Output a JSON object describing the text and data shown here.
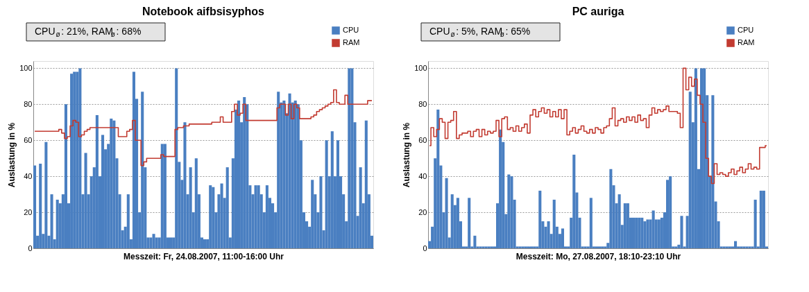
{
  "chart_data": [
    {
      "type": "bar",
      "title": "Notebook aifbsisyphos",
      "xlabel": "Messzeit: Fr, 24.08.2007,  11:00-16:00 Uhr",
      "ylabel": "Auslastung in %",
      "annotations": [
        "CPU$_{ø}$: 21%, RAM$_{ø}$: 68%"
      ],
      "categories": [
        null,
        null,
        null,
        null,
        null,
        null,
        null,
        null,
        null,
        null,
        null,
        null,
        null,
        null,
        null,
        null,
        null,
        null,
        null,
        null,
        null,
        null,
        null,
        null,
        null,
        null,
        null,
        null,
        null,
        null,
        null,
        null,
        null,
        null,
        null,
        null,
        null,
        null,
        null,
        null,
        null,
        null,
        null,
        null,
        null,
        null,
        null,
        null,
        null,
        null,
        null,
        null,
        null,
        null,
        null,
        null,
        null,
        null,
        null,
        null,
        null,
        null,
        null,
        null,
        null,
        null,
        null,
        null,
        null,
        null,
        null,
        null,
        null,
        null,
        null,
        null,
        null,
        null,
        null,
        null,
        null,
        null,
        null,
        null,
        null,
        null,
        null,
        null,
        null,
        null,
        null,
        null,
        null,
        null,
        null,
        null,
        null,
        null,
        null,
        null,
        null,
        null,
        null,
        null,
        null,
        null,
        null,
        null,
        null,
        null,
        null,
        null,
        null,
        null,
        null,
        null,
        null,
        null,
        null,
        null
      ],
      "series": [
        {
          "name": "CPU",
          "color": "#4a7fc1",
          "values": [
            46,
            7,
            47,
            8,
            59,
            7,
            30,
            5,
            27,
            25,
            30,
            80,
            25,
            97,
            98,
            98,
            100,
            30,
            53,
            30,
            40,
            45,
            74,
            40,
            63,
            55,
            58,
            72,
            71,
            50,
            30,
            10,
            12,
            30,
            5,
            98,
            83,
            20,
            87,
            45,
            6,
            6,
            8,
            6,
            6,
            58,
            58,
            6,
            6,
            6,
            100,
            48,
            38,
            70,
            30,
            45,
            20,
            50,
            30,
            6,
            5,
            5,
            35,
            34,
            20,
            30,
            36,
            28,
            45,
            6,
            50,
            77,
            82,
            70,
            84,
            80,
            35,
            30,
            35,
            35,
            30,
            20,
            35,
            28,
            25,
            20,
            87,
            81,
            82,
            75,
            86,
            81,
            82,
            80,
            60,
            20,
            15,
            12,
            38,
            30,
            20,
            40,
            10,
            60,
            40,
            65,
            40,
            60,
            40,
            30,
            15,
            100,
            100,
            70,
            18,
            45,
            25,
            71,
            30,
            7
          ]
        },
        {
          "name": "RAM",
          "type": "step",
          "color": "#c23b31",
          "values": [
            65,
            65,
            65,
            65,
            65,
            65,
            65,
            65,
            65,
            66,
            64,
            61,
            62,
            68,
            71,
            70,
            62,
            63,
            65,
            66,
            67,
            67,
            67,
            67,
            67,
            67,
            67,
            67,
            67,
            67,
            62,
            62,
            62,
            65,
            66,
            71,
            60,
            60,
            46,
            48,
            50,
            50,
            50,
            50,
            50,
            52,
            51,
            51,
            51,
            51,
            66,
            67,
            67,
            68,
            68,
            69,
            69,
            69,
            69,
            69,
            69,
            69,
            69,
            70,
            70,
            70,
            73,
            70,
            70,
            70,
            76,
            80,
            74,
            75,
            80,
            71,
            71,
            71,
            71,
            71,
            71,
            71,
            71,
            71,
            71,
            71,
            78,
            80,
            80,
            74,
            80,
            72,
            80,
            78,
            72,
            72,
            72,
            72,
            73,
            74,
            76,
            77,
            78,
            79,
            80,
            81,
            88,
            81,
            80,
            80,
            85,
            80,
            80,
            80,
            80,
            80,
            80,
            80,
            82,
            82
          ]
        }
      ],
      "ylim": [
        0,
        104
      ],
      "yticks": [
        0,
        20,
        40,
        60,
        80,
        100
      ],
      "grid": "y",
      "legend": "top right",
      "tick_labels": "y"
    },
    {
      "type": "bar",
      "title": "PC auriga",
      "xlabel": "Messzeit: Mo, 27.08.2007,  18:10-23:10 Uhr",
      "ylabel": "Auslastung in %",
      "annotations": [
        "CPU$_{ø}$: 5%, RAM$_{ø}$: 65%"
      ],
      "categories": [
        null,
        null,
        null,
        null,
        null,
        null,
        null,
        null,
        null,
        null,
        null,
        null,
        null,
        null,
        null,
        null,
        null,
        null,
        null,
        null,
        null,
        null,
        null,
        null,
        null,
        null,
        null,
        null,
        null,
        null,
        null,
        null,
        null,
        null,
        null,
        null,
        null,
        null,
        null,
        null,
        null,
        null,
        null,
        null,
        null,
        null,
        null,
        null,
        null,
        null,
        null,
        null,
        null,
        null,
        null,
        null,
        null,
        null,
        null,
        null,
        null,
        null,
        null,
        null,
        null,
        null,
        null,
        null,
        null,
        null,
        null,
        null,
        null,
        null,
        null,
        null,
        null,
        null,
        null,
        null,
        null,
        null,
        null,
        null,
        null,
        null,
        null,
        null,
        null,
        null,
        null,
        null,
        null,
        null,
        null,
        null,
        null,
        null,
        null,
        null,
        null,
        null,
        null,
        null,
        null,
        null,
        null,
        null,
        null,
        null,
        null,
        null,
        null,
        null,
        null,
        null,
        null,
        null,
        null,
        null
      ],
      "series": [
        {
          "name": "CPU",
          "color": "#4a7fc1",
          "values": [
            4,
            12,
            50,
            77,
            46,
            20,
            39,
            6,
            30,
            24,
            28,
            15,
            1,
            1,
            28,
            1,
            7,
            1,
            1,
            1,
            1,
            1,
            1,
            1,
            25,
            66,
            59,
            19,
            41,
            40,
            27,
            1,
            1,
            1,
            1,
            1,
            1,
            1,
            1,
            32,
            15,
            12,
            15,
            8,
            27,
            12,
            8,
            11,
            1,
            1,
            17,
            52,
            31,
            17,
            1,
            1,
            1,
            28,
            1,
            1,
            1,
            1,
            1,
            3,
            44,
            35,
            25,
            30,
            13,
            25,
            25,
            17,
            17,
            17,
            17,
            17,
            15,
            16,
            16,
            21,
            16,
            16,
            17,
            20,
            38,
            40,
            1,
            1,
            2,
            18,
            1,
            18,
            87,
            70,
            100,
            44,
            100,
            100,
            85,
            40,
            85,
            26,
            15,
            1,
            1,
            1,
            1,
            1,
            4,
            1,
            1,
            1,
            1,
            1,
            1,
            27,
            1,
            32,
            32,
            1
          ]
        },
        {
          "name": "RAM",
          "type": "step",
          "color": "#c23b31",
          "values": [
            57,
            67,
            62,
            66,
            72,
            70,
            61,
            70,
            71,
            76,
            61,
            63,
            64,
            64,
            65,
            62,
            65,
            66,
            62,
            66,
            63,
            65,
            64,
            65,
            71,
            62,
            72,
            73,
            66,
            67,
            65,
            68,
            65,
            67,
            69,
            64,
            74,
            77,
            73,
            76,
            78,
            75,
            77,
            73,
            76,
            73,
            77,
            72,
            77,
            63,
            65,
            67,
            64,
            66,
            68,
            65,
            64,
            66,
            64,
            67,
            66,
            64,
            67,
            68,
            72,
            78,
            68,
            71,
            72,
            70,
            73,
            71,
            73,
            70,
            74,
            71,
            72,
            67,
            74,
            78,
            75,
            77,
            76,
            77,
            79,
            76,
            76,
            76,
            75,
            67,
            100,
            88,
            95,
            90,
            94,
            85,
            80,
            70,
            50,
            40,
            36,
            47,
            41,
            42,
            41,
            40,
            42,
            44,
            41,
            43,
            45,
            42,
            44,
            47,
            44,
            45,
            44,
            56,
            56,
            57
          ]
        }
      ],
      "ylim": [
        0,
        104
      ],
      "yticks": [
        0,
        20,
        40,
        60,
        80,
        100
      ],
      "grid": "y",
      "legend": "top right",
      "tick_labels": "y"
    }
  ]
}
